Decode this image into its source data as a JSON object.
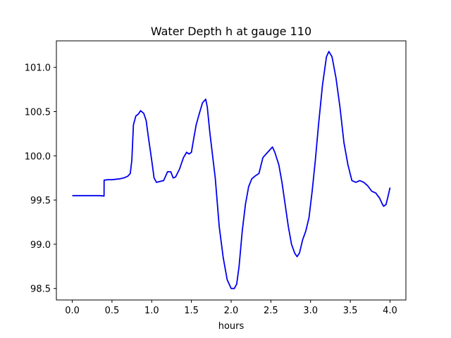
{
  "chart_data": {
    "type": "line",
    "title": "Water Depth h at gauge 110",
    "xlabel": "hours",
    "ylabel": "",
    "xlim": [
      -0.2,
      4.2
    ],
    "ylim": [
      98.37,
      101.3
    ],
    "xticks": [
      0.0,
      0.5,
      1.0,
      1.5,
      2.0,
      2.5,
      3.0,
      3.5,
      4.0
    ],
    "xtick_labels": [
      "0.0",
      "0.5",
      "1.0",
      "1.5",
      "2.0",
      "2.5",
      "3.0",
      "3.5",
      "4.0"
    ],
    "yticks": [
      98.5,
      99.0,
      99.5,
      100.0,
      100.5,
      101.0
    ],
    "ytick_labels": [
      "98.5",
      "99.0",
      "99.5",
      "100.0",
      "100.5",
      "101.0"
    ],
    "grid": false,
    "series": [
      {
        "color": "#0000ee",
        "x": [
          0.0,
          0.1,
          0.2,
          0.3,
          0.35,
          0.4,
          0.401,
          0.45,
          0.5,
          0.55,
          0.6,
          0.65,
          0.7,
          0.73,
          0.75,
          0.77,
          0.8,
          0.83,
          0.86,
          0.9,
          0.93,
          0.96,
          1.0,
          1.03,
          1.06,
          1.1,
          1.15,
          1.2,
          1.24,
          1.27,
          1.3,
          1.35,
          1.4,
          1.44,
          1.47,
          1.5,
          1.53,
          1.56,
          1.6,
          1.64,
          1.68,
          1.7,
          1.73,
          1.76,
          1.8,
          1.85,
          1.9,
          1.95,
          2.0,
          2.04,
          2.07,
          2.1,
          2.14,
          2.18,
          2.22,
          2.26,
          2.3,
          2.35,
          2.4,
          2.44,
          2.48,
          2.52,
          2.55,
          2.6,
          2.64,
          2.68,
          2.72,
          2.76,
          2.8,
          2.83,
          2.86,
          2.9,
          2.94,
          2.98,
          3.02,
          3.06,
          3.1,
          3.15,
          3.2,
          3.23,
          3.27,
          3.32,
          3.37,
          3.42,
          3.47,
          3.52,
          3.57,
          3.62,
          3.67,
          3.72,
          3.77,
          3.82,
          3.87,
          3.9,
          3.92,
          3.95,
          3.98,
          4.0
        ],
        "y": [
          99.55,
          99.55,
          99.55,
          99.55,
          99.55,
          99.545,
          99.725,
          99.73,
          99.73,
          99.735,
          99.74,
          99.75,
          99.77,
          99.8,
          99.95,
          100.35,
          100.45,
          100.47,
          100.51,
          100.48,
          100.4,
          100.2,
          99.95,
          99.75,
          99.7,
          99.71,
          99.72,
          99.82,
          99.82,
          99.75,
          99.76,
          99.85,
          99.98,
          100.04,
          100.02,
          100.04,
          100.2,
          100.35,
          100.48,
          100.6,
          100.64,
          100.55,
          100.28,
          100.05,
          99.75,
          99.2,
          98.85,
          98.6,
          98.5,
          98.5,
          98.55,
          98.75,
          99.15,
          99.45,
          99.65,
          99.74,
          99.77,
          99.8,
          99.98,
          100.02,
          100.06,
          100.1,
          100.04,
          99.9,
          99.7,
          99.45,
          99.2,
          99.0,
          98.9,
          98.86,
          98.9,
          99.05,
          99.15,
          99.3,
          99.6,
          99.95,
          100.35,
          100.8,
          101.12,
          101.18,
          101.12,
          100.88,
          100.55,
          100.15,
          99.9,
          99.72,
          99.7,
          99.72,
          99.7,
          99.66,
          99.6,
          99.58,
          99.52,
          99.46,
          99.43,
          99.45,
          99.56,
          99.64
        ]
      }
    ]
  }
}
